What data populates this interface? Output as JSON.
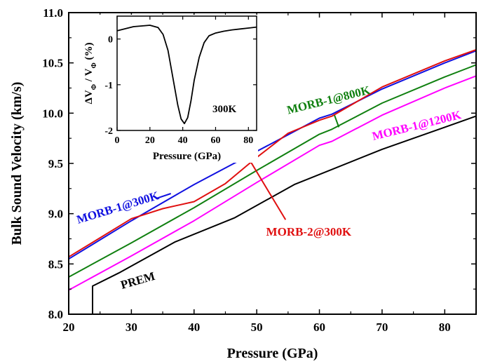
{
  "chart_data": [
    {
      "type": "line",
      "xlabel": "Pressure (GPa)",
      "ylabel": "Bulk Sound Velocity (km/s)",
      "xlim": [
        20,
        85
      ],
      "ylim": [
        8.0,
        11.0
      ],
      "xticks": [
        "20",
        "30",
        "40",
        "50",
        "60",
        "70",
        "80"
      ],
      "yticks": [
        "8.0",
        "8.5",
        "9.0",
        "9.5",
        "10.0",
        "10.5",
        "11.0"
      ],
      "grid": false,
      "series": [
        {
          "name": "MORB-1@300K",
          "color": "#1010e0",
          "x": [
            20,
            30,
            40,
            50,
            60,
            62,
            70,
            80,
            85
          ],
          "y": [
            8.55,
            8.93,
            9.29,
            9.62,
            9.95,
            9.99,
            10.24,
            10.5,
            10.62
          ]
        },
        {
          "name": "MORB-2@300K",
          "color": "#e01010",
          "x": [
            20,
            25,
            30,
            35,
            40,
            45,
            50,
            55,
            60,
            62,
            70,
            80,
            85
          ],
          "y": [
            8.57,
            8.76,
            8.95,
            9.05,
            9.12,
            9.3,
            9.56,
            9.8,
            9.93,
            9.97,
            10.26,
            10.52,
            10.63
          ]
        },
        {
          "name": "MORB-1@800K",
          "color": "#108010",
          "x": [
            20,
            30,
            40,
            50,
            60,
            62,
            70,
            80,
            85
          ],
          "y": [
            8.37,
            8.71,
            9.06,
            9.43,
            9.79,
            9.84,
            10.1,
            10.36,
            10.48
          ]
        },
        {
          "name": "MORB-1@1200K",
          "color": "#ff00ff",
          "x": [
            20,
            30,
            40,
            50,
            60,
            62,
            70,
            80,
            85
          ],
          "y": [
            8.24,
            8.58,
            8.93,
            9.31,
            9.68,
            9.72,
            9.98,
            10.25,
            10.37
          ]
        },
        {
          "name": "PREM",
          "color": "#000000",
          "x": [
            23.8,
            23.8,
            28,
            37,
            46.5,
            56,
            70,
            80,
            85
          ],
          "y": [
            8.0,
            8.28,
            8.41,
            8.72,
            8.96,
            9.29,
            9.64,
            9.86,
            9.97
          ]
        }
      ],
      "annotations": [
        {
          "text": "MORB-1@300K",
          "color": "#1010e0",
          "label_x": 21.5,
          "label_y": 8.9,
          "rotate": -17,
          "pointer_from": [
            33.9,
            9.15
          ],
          "pointer_to": [
            36.3,
            9.2
          ]
        },
        {
          "text": "MORB-2@300K",
          "color": "#e01010",
          "label_x": 51.5,
          "label_y": 8.78,
          "rotate": 0,
          "pointer_from": [
            54.6,
            8.94
          ],
          "pointer_to": [
            48.9,
            9.53
          ]
        },
        {
          "text": "MORB-1@800K",
          "color": "#108010",
          "label_x": 55.0,
          "label_y": 9.99,
          "rotate": -14,
          "pointer_from": [
            62.4,
            9.98
          ],
          "pointer_to": [
            63.1,
            9.86
          ]
        },
        {
          "text": "MORB-1@1200K",
          "color": "#ff00ff",
          "label_x": 68.6,
          "label_y": 9.73,
          "rotate": -14,
          "pointer_from": null,
          "pointer_to": null
        },
        {
          "text": "PREM",
          "color": "#000000",
          "label_x": 28.5,
          "label_y": 8.25,
          "rotate": -16,
          "pointer_from": null,
          "pointer_to": null
        }
      ]
    },
    {
      "type": "line",
      "xlabel": "Pressure (GPa)",
      "ylabel": "ΔVΦ / VΦ (%)",
      "ylabel_parts": [
        "ΔV",
        "Φ",
        " / V",
        "Φ",
        " (%)"
      ],
      "xlim": [
        0,
        85
      ],
      "ylim": [
        -2,
        0.5
      ],
      "xticks": [
        "0",
        "20",
        "40",
        "60",
        "80"
      ],
      "yticks": [
        "-2",
        "-1",
        "0"
      ],
      "annotation": "300K",
      "series": [
        {
          "name": "",
          "color": "#000000",
          "x": [
            0,
            10,
            20,
            25,
            28,
            31,
            34,
            37,
            39,
            41,
            43,
            45,
            47,
            50,
            53,
            56,
            60,
            65,
            70,
            75,
            80,
            85
          ],
          "y": [
            0.18,
            0.27,
            0.3,
            0.25,
            0.1,
            -0.25,
            -0.85,
            -1.45,
            -1.75,
            -1.85,
            -1.72,
            -1.35,
            -0.9,
            -0.4,
            -0.08,
            0.07,
            0.13,
            0.17,
            0.2,
            0.22,
            0.24,
            0.26
          ]
        }
      ]
    }
  ]
}
